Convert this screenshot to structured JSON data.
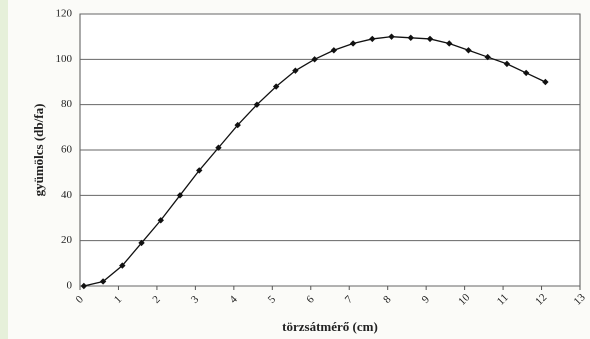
{
  "chart_data": {
    "type": "line",
    "x_label": "törzsátmérő (cm)",
    "y_label": "gyümölcs (db/fa)",
    "series": [
      {
        "color": "#111111",
        "x": [
          0.1,
          0.6,
          1.1,
          1.6,
          2.1,
          2.6,
          3.1,
          3.6,
          4.1,
          4.6,
          5.1,
          5.6,
          6.1,
          6.6,
          7.1,
          7.6,
          8.1,
          8.6,
          9.1,
          9.6,
          10.1,
          10.6,
          11.1,
          11.6,
          12.1
        ],
        "values": [
          0,
          2,
          9,
          19,
          29,
          40,
          51,
          61,
          71,
          80,
          88,
          95,
          100,
          104,
          107,
          109,
          110,
          109.5,
          109,
          107,
          104,
          101,
          98,
          94,
          90
        ]
      }
    ],
    "xlim": [
      0,
      13
    ],
    "xticks": [
      0,
      1,
      2,
      3,
      4,
      5,
      6,
      7,
      8,
      9,
      10,
      11,
      12,
      13
    ],
    "ylim": [
      0,
      120
    ],
    "yticks": [
      0,
      20,
      40,
      60,
      80,
      100,
      120
    ],
    "grid": true
  }
}
